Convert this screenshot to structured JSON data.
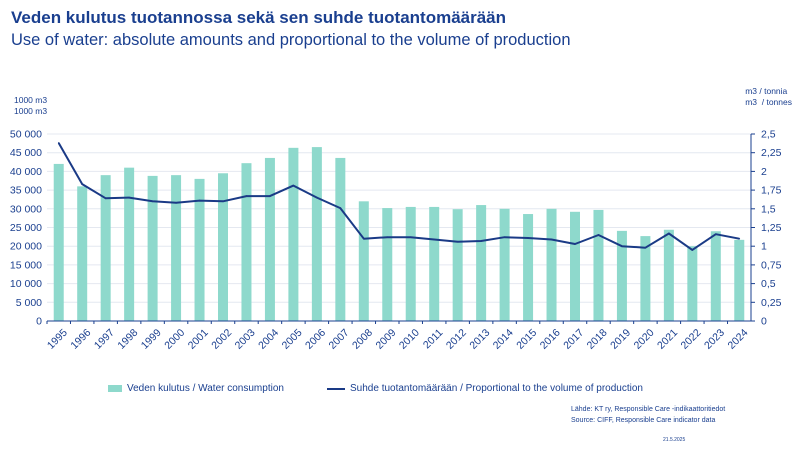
{
  "header": {
    "title": "Veden kulutus tuotannossa sekä sen suhde tuotantomäärään",
    "subtitle": "Use of water: absolute amounts and proportional to the volume of production"
  },
  "units": {
    "left": "1000 m3\n1000 m3",
    "right": "m3 / tonnia\nm3  / tonnes"
  },
  "legend": {
    "bar_label": "Veden kulutus / Water consumption",
    "line_label": "Suhde tuotantomäärään / Proportional to the volume of production"
  },
  "footer": {
    "source_fi": "Lähde: KT ry, Responsible Care -indikaattoritiedot",
    "source_en": "Source: CIFF, Responsible Care indicator data",
    "date": "21.5.2025"
  },
  "colors": {
    "bar": "#8ed9cc",
    "line": "#1a3a86",
    "text": "#1a3f8f",
    "grid": "#e4e8f0"
  },
  "chart_data": {
    "type": "bar",
    "categories": [
      "1995",
      "1996",
      "1997",
      "1998",
      "1999",
      "2000",
      "2001",
      "2002",
      "2003",
      "2004",
      "2005",
      "2006",
      "2007",
      "2008",
      "2009",
      "2010",
      "2011",
      "2012",
      "2013",
      "2014",
      "2015",
      "2016",
      "2017",
      "2018",
      "2019",
      "2020",
      "2021",
      "2022",
      "2023",
      "2024"
    ],
    "series": [
      {
        "name": "Veden kulutus / Water consumption",
        "type": "bar",
        "axis": "left",
        "values": [
          42000,
          36000,
          39000,
          41000,
          38800,
          39000,
          38000,
          39500,
          42200,
          43600,
          46300,
          46500,
          43600,
          32000,
          30200,
          30500,
          30500,
          29900,
          31000,
          30000,
          28600,
          30000,
          29200,
          29700,
          24100,
          22700,
          24400,
          20000,
          24000,
          21700
        ]
      },
      {
        "name": "Suhde tuotantomäärään / Proportional to the volume of production",
        "type": "line",
        "axis": "right",
        "values": [
          2.38,
          1.83,
          1.64,
          1.65,
          1.6,
          1.58,
          1.61,
          1.6,
          1.67,
          1.67,
          1.81,
          1.65,
          1.51,
          1.1,
          1.12,
          1.12,
          1.09,
          1.06,
          1.07,
          1.12,
          1.11,
          1.09,
          1.03,
          1.15,
          1.0,
          0.98,
          1.17,
          0.95,
          1.16,
          1.1
        ]
      }
    ],
    "y_left": {
      "min": 0,
      "max": 50000,
      "ticks": [
        "0",
        "5 000",
        "10 000",
        "15 000",
        "20 000",
        "25 000",
        "30 000",
        "35 000",
        "40 000",
        "45 000",
        "50 000"
      ]
    },
    "y_right": {
      "min": 0,
      "max": 2.5,
      "ticks": [
        "0",
        "0,25",
        "0,5",
        "0,75",
        "1",
        "1,25",
        "1,5",
        "1,75",
        "2",
        "2,25",
        "2,5"
      ]
    },
    "grid": true,
    "legend_position": "bottom"
  }
}
